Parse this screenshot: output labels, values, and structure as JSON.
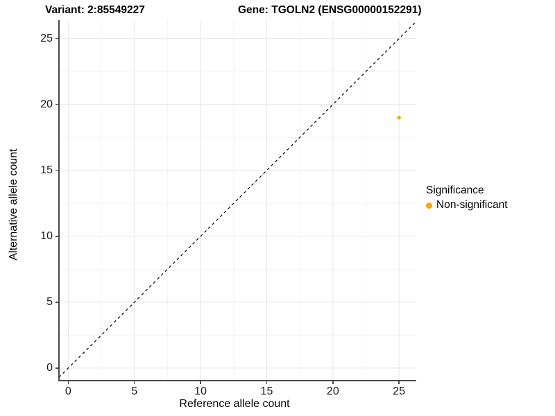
{
  "figure": {
    "title_left": "Variant: 2:85549227",
    "title_right": "Gene: TGOLN2 (ENSG00000152291)"
  },
  "chart_data": {
    "type": "scatter",
    "xlabel": "Reference allele count",
    "ylabel": "Alternative allele count",
    "xlim": [
      -0.7,
      26.3
    ],
    "ylim": [
      -0.9,
      26.4
    ],
    "x_ticks": [
      0,
      5,
      10,
      15,
      20,
      25
    ],
    "y_ticks": [
      0,
      5,
      10,
      15,
      20,
      25
    ],
    "x_minor_ticks": [
      2.5,
      7.5,
      12.5,
      17.5,
      22.5
    ],
    "y_minor_ticks": [
      2.5,
      7.5,
      12.5,
      17.5,
      22.5
    ],
    "grid": true,
    "series": [
      {
        "name": "Non-significant",
        "color": "#FFA500",
        "points": [
          {
            "x": 25,
            "y": 19
          }
        ]
      }
    ],
    "reference_line": {
      "kind": "identity y = x",
      "style": "dashed",
      "color": "#000000"
    },
    "legend": {
      "title": "Significance",
      "position": "right",
      "entries": [
        {
          "label": "Non-significant",
          "color": "#FFA500"
        }
      ]
    },
    "colors": {
      "grid_major": "#e7e7e7",
      "grid_minor": "#f3f3f3",
      "axis_line": "#4a4a4a",
      "tick": "#4a4a4a",
      "tick_label": "#1a1a1a",
      "background": "#ffffff"
    }
  }
}
